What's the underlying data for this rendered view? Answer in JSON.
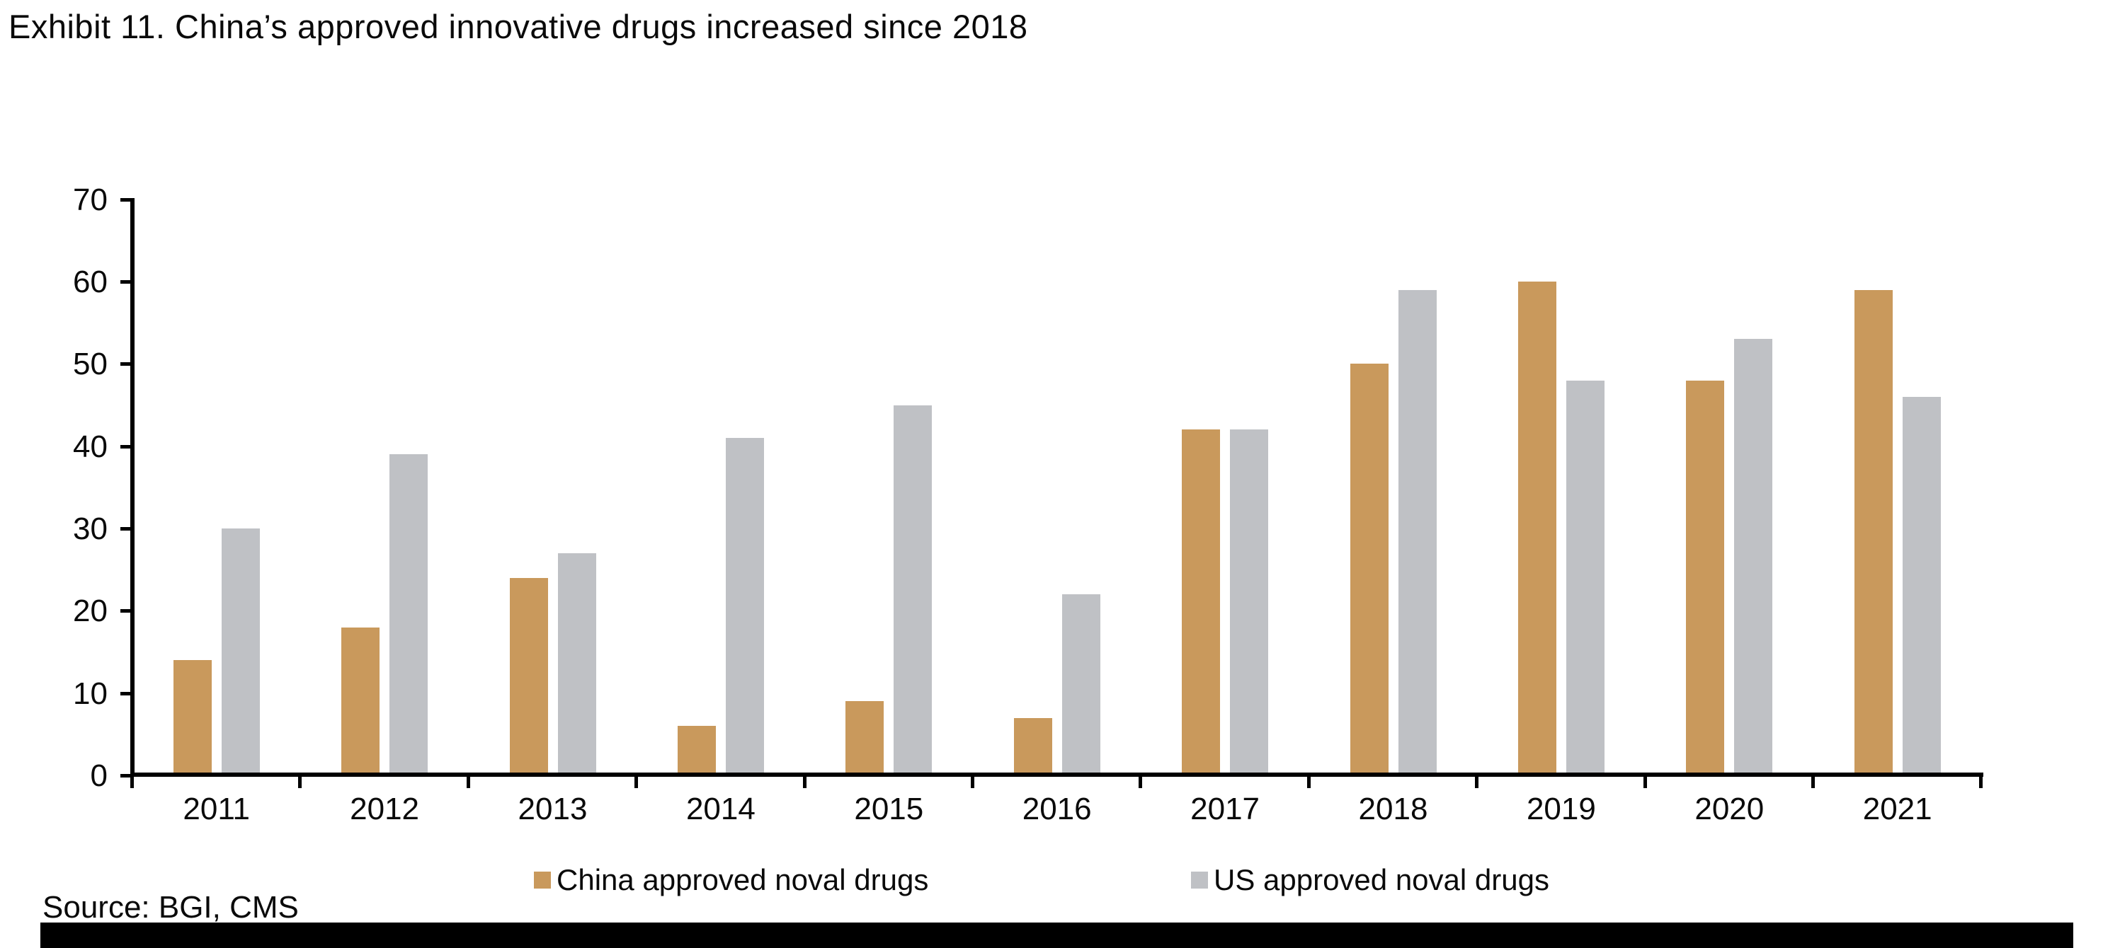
{
  "title": "Exhibit 11. China’s approved innovative drugs increased since 2018",
  "source": "Source: BGI, CMS",
  "colors": {
    "china": "#C9995C",
    "us": "#BFC1C5",
    "axis": "#000000",
    "text": "#0A0A0A",
    "redaction_bar": "#000000"
  },
  "legend": [
    {
      "label": "China approved noval drugs",
      "color_key": "china"
    },
    {
      "label": "US approved noval drugs",
      "color_key": "us"
    }
  ],
  "chart_data": {
    "type": "bar",
    "title": "Exhibit 11. China’s approved innovative drugs increased since 2018",
    "categories": [
      "2011",
      "2012",
      "2013",
      "2014",
      "2015",
      "2016",
      "2017",
      "2018",
      "2019",
      "2020",
      "2021"
    ],
    "series": [
      {
        "name": "China approved noval drugs",
        "color_key": "china",
        "values": [
          14,
          18,
          24,
          6,
          9,
          7,
          42,
          50,
          60,
          48,
          59
        ]
      },
      {
        "name": "US approved noval drugs",
        "color_key": "us",
        "values": [
          30,
          39,
          27,
          41,
          45,
          22,
          42,
          59,
          48,
          53,
          46
        ]
      }
    ],
    "xlabel": "",
    "ylabel": "",
    "ylim": [
      0,
      70
    ],
    "ytick_step": 10,
    "grid": false,
    "legend_position": "bottom"
  }
}
